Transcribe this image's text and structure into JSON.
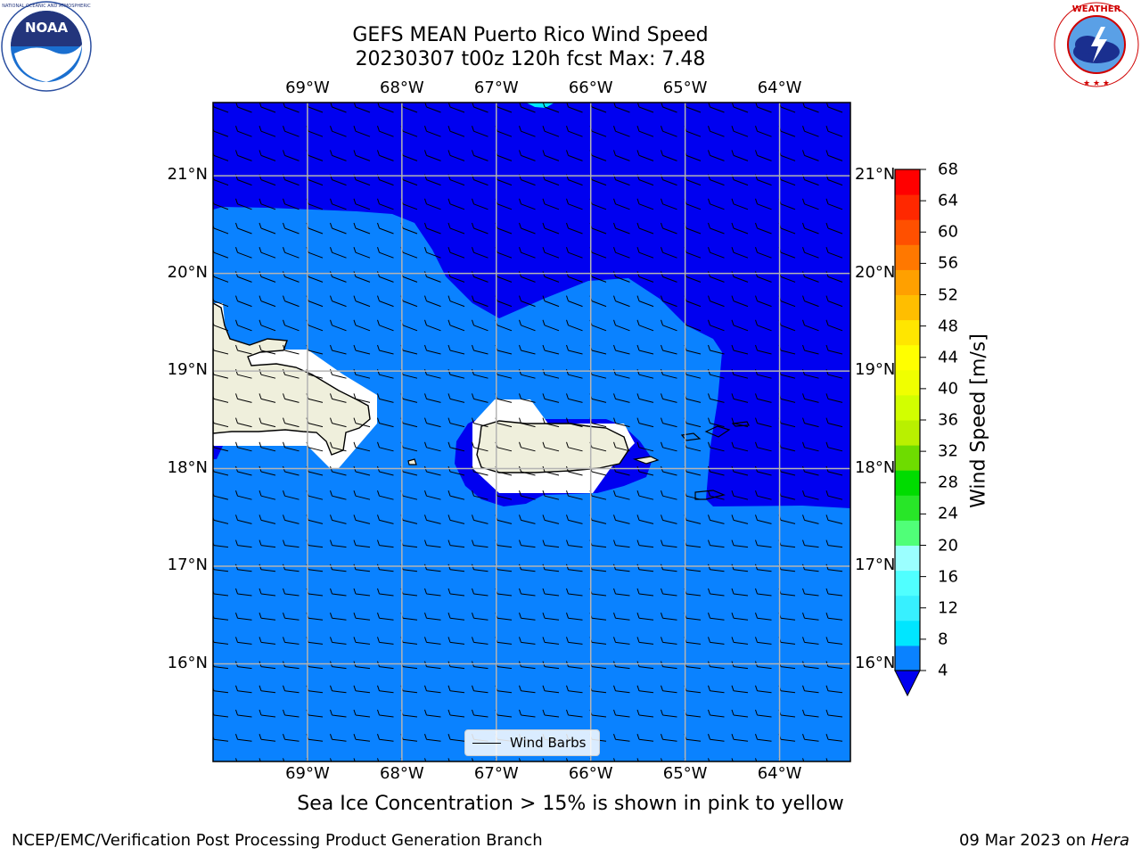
{
  "title_line1": "GEFS MEAN Puerto Rico Wind Speed",
  "title_line2": "20230307 t00z 120h fcst   Max: 7.48",
  "map": {
    "lon_range": [
      -70.0,
      -63.25
    ],
    "lat_range": [
      15.0,
      21.75
    ],
    "lon_ticks": [
      "69°W",
      "68°W",
      "67°W",
      "66°W",
      "65°W",
      "64°W"
    ],
    "lat_ticks": [
      "21°N",
      "20°N",
      "19°N",
      "18°N",
      "17°N",
      "16°N"
    ],
    "gridlines": true,
    "fill_colors": {
      "band_4_8": "#0a82ff",
      "below_4": "#0000f0",
      "land": "#efefdc",
      "masked": "#ffffff"
    }
  },
  "colorbar": {
    "label": "Wind Speed [m/s]",
    "ticks": [
      "68",
      "64",
      "60",
      "56",
      "52",
      "48",
      "44",
      "40",
      "36",
      "32",
      "28",
      "24",
      "20",
      "16",
      "12",
      "8",
      "4"
    ],
    "colors": [
      "#0000f0",
      "#0a82ff",
      "#00e6ff",
      "#37f0ff",
      "#50ffff",
      "#9bffff",
      "#50ff78",
      "#28e628",
      "#00dc00",
      "#6edc00",
      "#b9f000",
      "#d2ff00",
      "#f0ff00",
      "#ffff00",
      "#ffe600",
      "#ffbe00",
      "#ffa000",
      "#ff7800",
      "#ff5000",
      "#ff2800",
      "#ff0000"
    ],
    "extend": "min"
  },
  "legend": {
    "label": "Wind Barbs"
  },
  "subtitle": "Sea Ice Concentration > 15% is shown in pink to yellow",
  "footer_left": "NCEP/EMC/Verification Post Processing Product Generation Branch",
  "footer_date": "09 Mar 2023 on ",
  "footer_machine": "Hera",
  "logos": {
    "noaa": {
      "text": "NOAA",
      "ring_text": "NATIONAL OCEANIC AND ATMOSPHERIC ADMINISTRATION · U.S. DEPARTMENT OF COMMERCE"
    },
    "nws": {
      "ring_text": "NATIONAL WEATHER SERVICE"
    }
  }
}
